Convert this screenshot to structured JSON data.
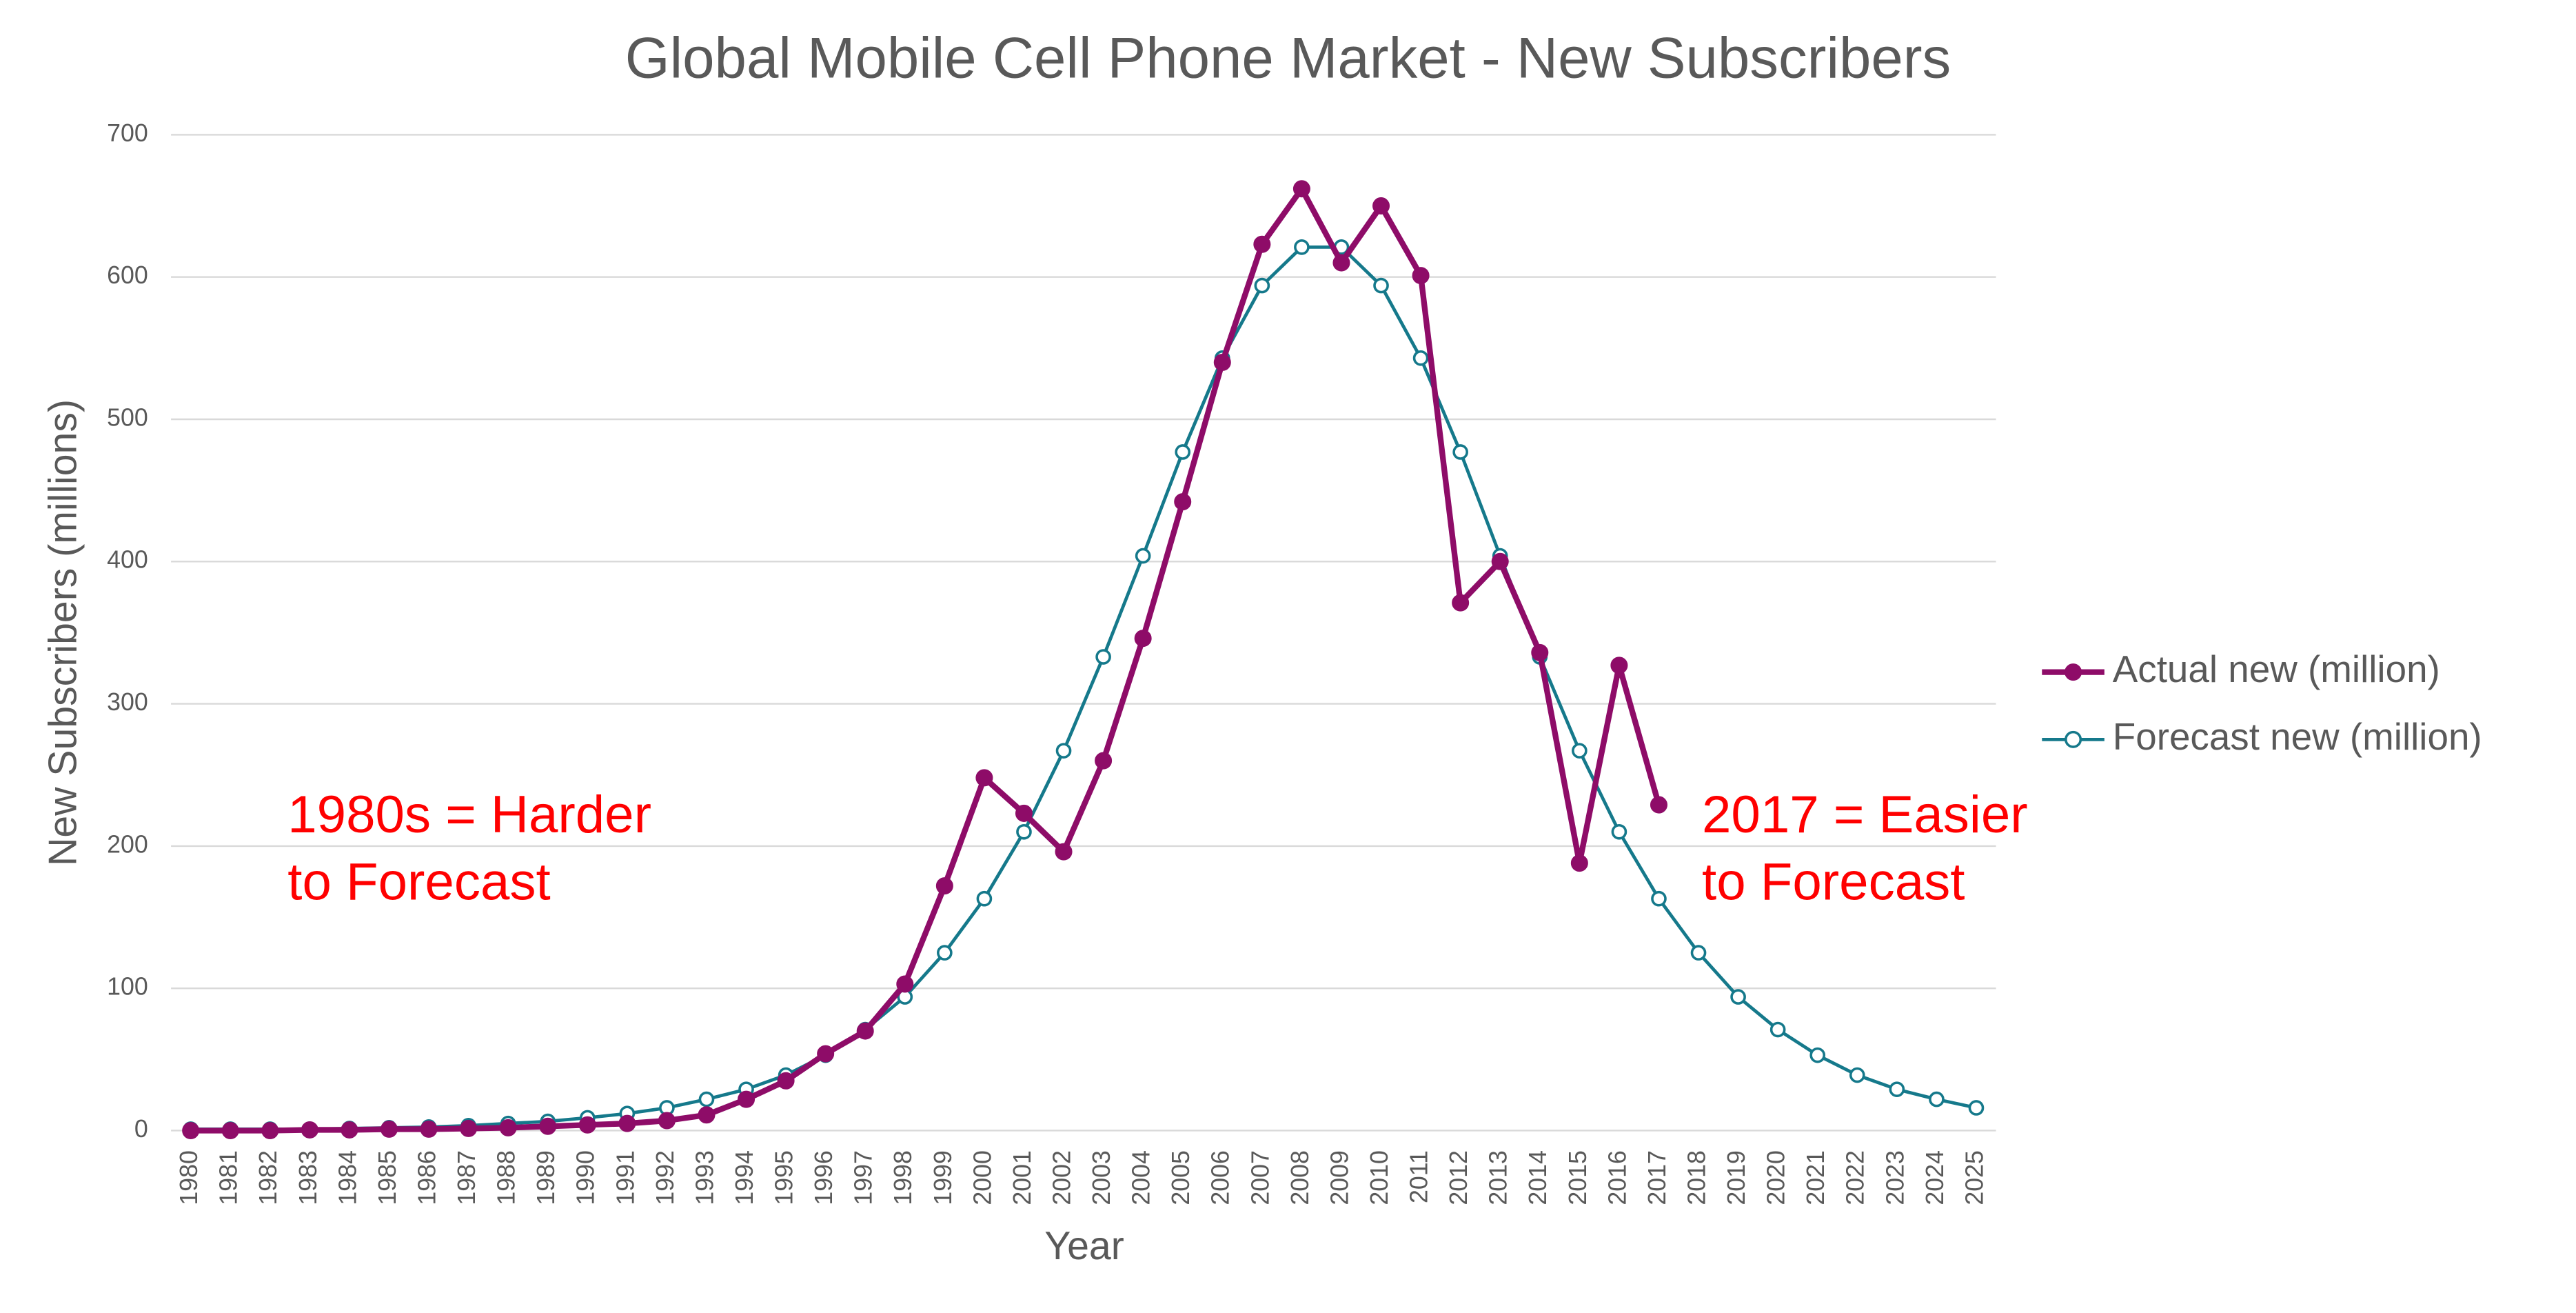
{
  "chart_data": {
    "type": "line",
    "title": "Global Mobile Cell Phone Market - New Subscribers",
    "x_label": "Year",
    "y_label": "New Subscribers (millions)",
    "categories": [
      "1980",
      "1981",
      "1982",
      "1983",
      "1984",
      "1985",
      "1986",
      "1987",
      "1988",
      "1989",
      "1990",
      "1991",
      "1992",
      "1993",
      "1994",
      "1995",
      "1996",
      "1997",
      "1998",
      "1999",
      "2000",
      "2001",
      "2002",
      "2003",
      "2004",
      "2005",
      "2006",
      "2007",
      "2008",
      "2009",
      "2010",
      "2011",
      "2012",
      "2013",
      "2014",
      "2015",
      "2016",
      "2017",
      "2018",
      "2019",
      "2020",
      "2021",
      "2022",
      "2023",
      "2024",
      "2025"
    ],
    "series": [
      {
        "name": "Actual new (million)",
        "color": "#8e0c68",
        "marker": "filled",
        "values": [
          0,
          0,
          0,
          0.5,
          0.5,
          1,
          1,
          1.5,
          2,
          3,
          4,
          5,
          7,
          11,
          22,
          35,
          54,
          70,
          103,
          172,
          248,
          223,
          196,
          260,
          346,
          442,
          540,
          623,
          662,
          610,
          650,
          601,
          371,
          400,
          336,
          188,
          327,
          229,
          null,
          null,
          null,
          null,
          null,
          null,
          null,
          null
        ]
      },
      {
        "name": "Forecast new (million)",
        "color": "#15798b",
        "marker": "hollow",
        "values": [
          1,
          1,
          1,
          1,
          1.5,
          2,
          2.5,
          3.5,
          5,
          6.5,
          9,
          12,
          16,
          22,
          29,
          39,
          53,
          71,
          94,
          125,
          163,
          210,
          267,
          333,
          404,
          477,
          543,
          594,
          621,
          621,
          594,
          543,
          477,
          404,
          333,
          267,
          210,
          163,
          125,
          94,
          71,
          53,
          39,
          29,
          22,
          16
        ]
      }
    ],
    "ylim": [
      0,
      700
    ],
    "yticks": [
      0,
      100,
      200,
      300,
      400,
      500,
      600,
      700
    ],
    "grid": true,
    "legend": "right",
    "annotations": [
      {
        "lines": [
          "1980s = Harder",
          "to Forecast"
        ],
        "color": "#ff0000"
      },
      {
        "lines": [
          "2017 = Easier",
          "to Forecast"
        ],
        "color": "#ff0000"
      }
    ]
  }
}
